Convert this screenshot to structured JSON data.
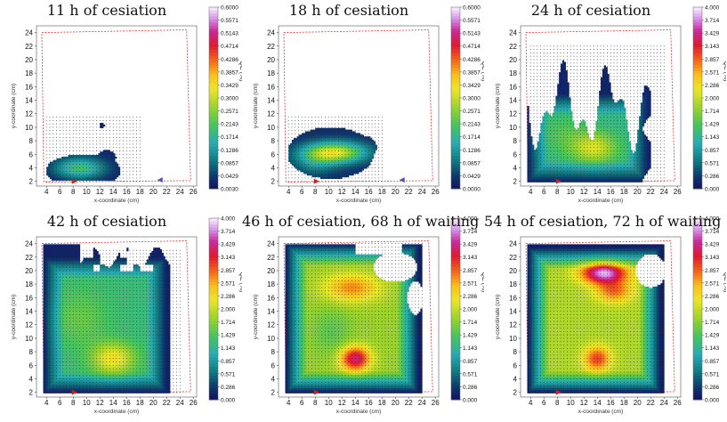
{
  "charts": [
    {
      "title": "11 h of cesiation",
      "ticks": [
        "0.6000",
        "0.5571",
        "0.5143",
        "0.4714",
        "0.4286",
        "0.3857",
        "0.3429",
        "0.3000",
        "0.2571",
        "0.2143",
        "0.1714",
        "0.1286",
        "0.0857",
        "0.0429",
        "0.0030"
      ]
    },
    {
      "title": "18 h of cesiation",
      "ticks": [
        "0.6000",
        "0.5571",
        "0.5143",
        "0.4714",
        "0.4286",
        "0.3857",
        "0.3429",
        "0.3000",
        "0.2571",
        "0.2143",
        "0.1714",
        "0.1286",
        "0.0857",
        "0.0429",
        "0.0000"
      ]
    },
    {
      "title": "24 h of cesiation",
      "ticks": [
        "4.000",
        "3.714",
        "3.429",
        "3.143",
        "2.857",
        "2.571",
        "2.286",
        "2.000",
        "1.714",
        "1.429",
        "1.143",
        "0.857",
        "0.571",
        "0.286",
        "0.000"
      ]
    },
    {
      "title": "42 h of cesiation",
      "ticks": [
        "4.000",
        "3.714",
        "3.429",
        "3.143",
        "2.857",
        "2.571",
        "2.286",
        "2.000",
        "1.714",
        "1.429",
        "1.143",
        "0.857",
        "0.571",
        "0.286",
        "0.000"
      ]
    },
    {
      "title": "46 h of cesiation, 68 h of waiting",
      "ticks": [
        "4.000",
        "3.714",
        "3.429",
        "3.143",
        "2.857",
        "2.571",
        "2.286",
        "2.000",
        "1.714",
        "1.429",
        "1.143",
        "0.857",
        "0.571",
        "0.286",
        "0.000"
      ]
    },
    {
      "title": "54 h of cesiation, 72 h of waiting",
      "ticks": [
        "4.000",
        "3.714",
        "3.429",
        "3.143",
        "2.857",
        "2.571",
        "2.286",
        "2.000",
        "1.714",
        "1.429",
        "1.143",
        "0.857",
        "0.571",
        "0.286",
        "0.000"
      ]
    }
  ],
  "axes": {
    "xlabel": "x-coordinate (cm)",
    "ylabel": "y-coordinate (cm)",
    "cbar_label": "QE (%)",
    "xticks": [
      "4",
      "6",
      "8",
      "10",
      "12",
      "14",
      "16",
      "18",
      "20",
      "22",
      "24",
      "26"
    ],
    "yticks": [
      "2",
      "4",
      "6",
      "8",
      "10",
      "12",
      "14",
      "16",
      "18",
      "20",
      "22",
      "24"
    ]
  },
  "chart_data": [
    {
      "type": "heatmap",
      "title": "11 h of cesiation",
      "xlabel": "x-coordinate (cm)",
      "ylabel": "y-coordinate (cm)",
      "colorbar_label": "QE (%)",
      "colorbar_range": [
        0.003,
        0.6
      ],
      "xlim": [
        2.5,
        26.5
      ],
      "ylim": [
        1.3,
        25
      ],
      "peak": {
        "x": 9,
        "y": 4,
        "value": 0.2
      }
    },
    {
      "type": "heatmap",
      "title": "18 h of cesiation",
      "xlabel": "x-coordinate (cm)",
      "ylabel": "y-coordinate (cm)",
      "colorbar_label": "QE (%)",
      "colorbar_range": [
        0,
        0.6
      ],
      "xlim": [
        2.5,
        26.5
      ],
      "ylim": [
        1.3,
        25
      ],
      "peak": {
        "x": 11,
        "y": 6.5,
        "value": 0.33
      }
    },
    {
      "type": "heatmap",
      "title": "24 h of cesiation",
      "xlabel": "x-coordinate (cm)",
      "ylabel": "y-coordinate (cm)",
      "colorbar_label": "QE (%)",
      "colorbar_range": [
        0,
        4
      ],
      "xlim": [
        2.5,
        26.5
      ],
      "ylim": [
        1.3,
        25
      ],
      "peak": {
        "x": 14,
        "y": 7,
        "value": 2.3
      }
    },
    {
      "type": "heatmap",
      "title": "42 h of cesiation",
      "xlabel": "x-coordinate (cm)",
      "ylabel": "y-coordinate (cm)",
      "colorbar_label": "QE (%)",
      "colorbar_range": [
        0,
        4
      ],
      "xlim": [
        2.5,
        26.5
      ],
      "ylim": [
        1.3,
        25
      ],
      "peak": {
        "x": 14,
        "y": 7,
        "value": 2.4
      }
    },
    {
      "type": "heatmap",
      "title": "46 h of cesiation, 68 h of waiting",
      "xlabel": "x-coordinate (cm)",
      "ylabel": "y-coordinate (cm)",
      "colorbar_label": "QE (%)",
      "colorbar_range": [
        0,
        4
      ],
      "xlim": [
        2.5,
        26.5
      ],
      "ylim": [
        1.3,
        25
      ],
      "peak": {
        "x": 14,
        "y": 7,
        "value": 3.1
      }
    },
    {
      "type": "heatmap",
      "title": "54 h of cesiation, 72 h of waiting",
      "xlabel": "x-coordinate (cm)",
      "ylabel": "y-coordinate (cm)",
      "colorbar_label": "QE (%)",
      "colorbar_range": [
        0,
        4
      ],
      "xlim": [
        2.5,
        26.5
      ],
      "ylim": [
        1.3,
        25
      ],
      "peak": {
        "x": 15,
        "y": 19.5,
        "value": 4.0
      }
    }
  ]
}
